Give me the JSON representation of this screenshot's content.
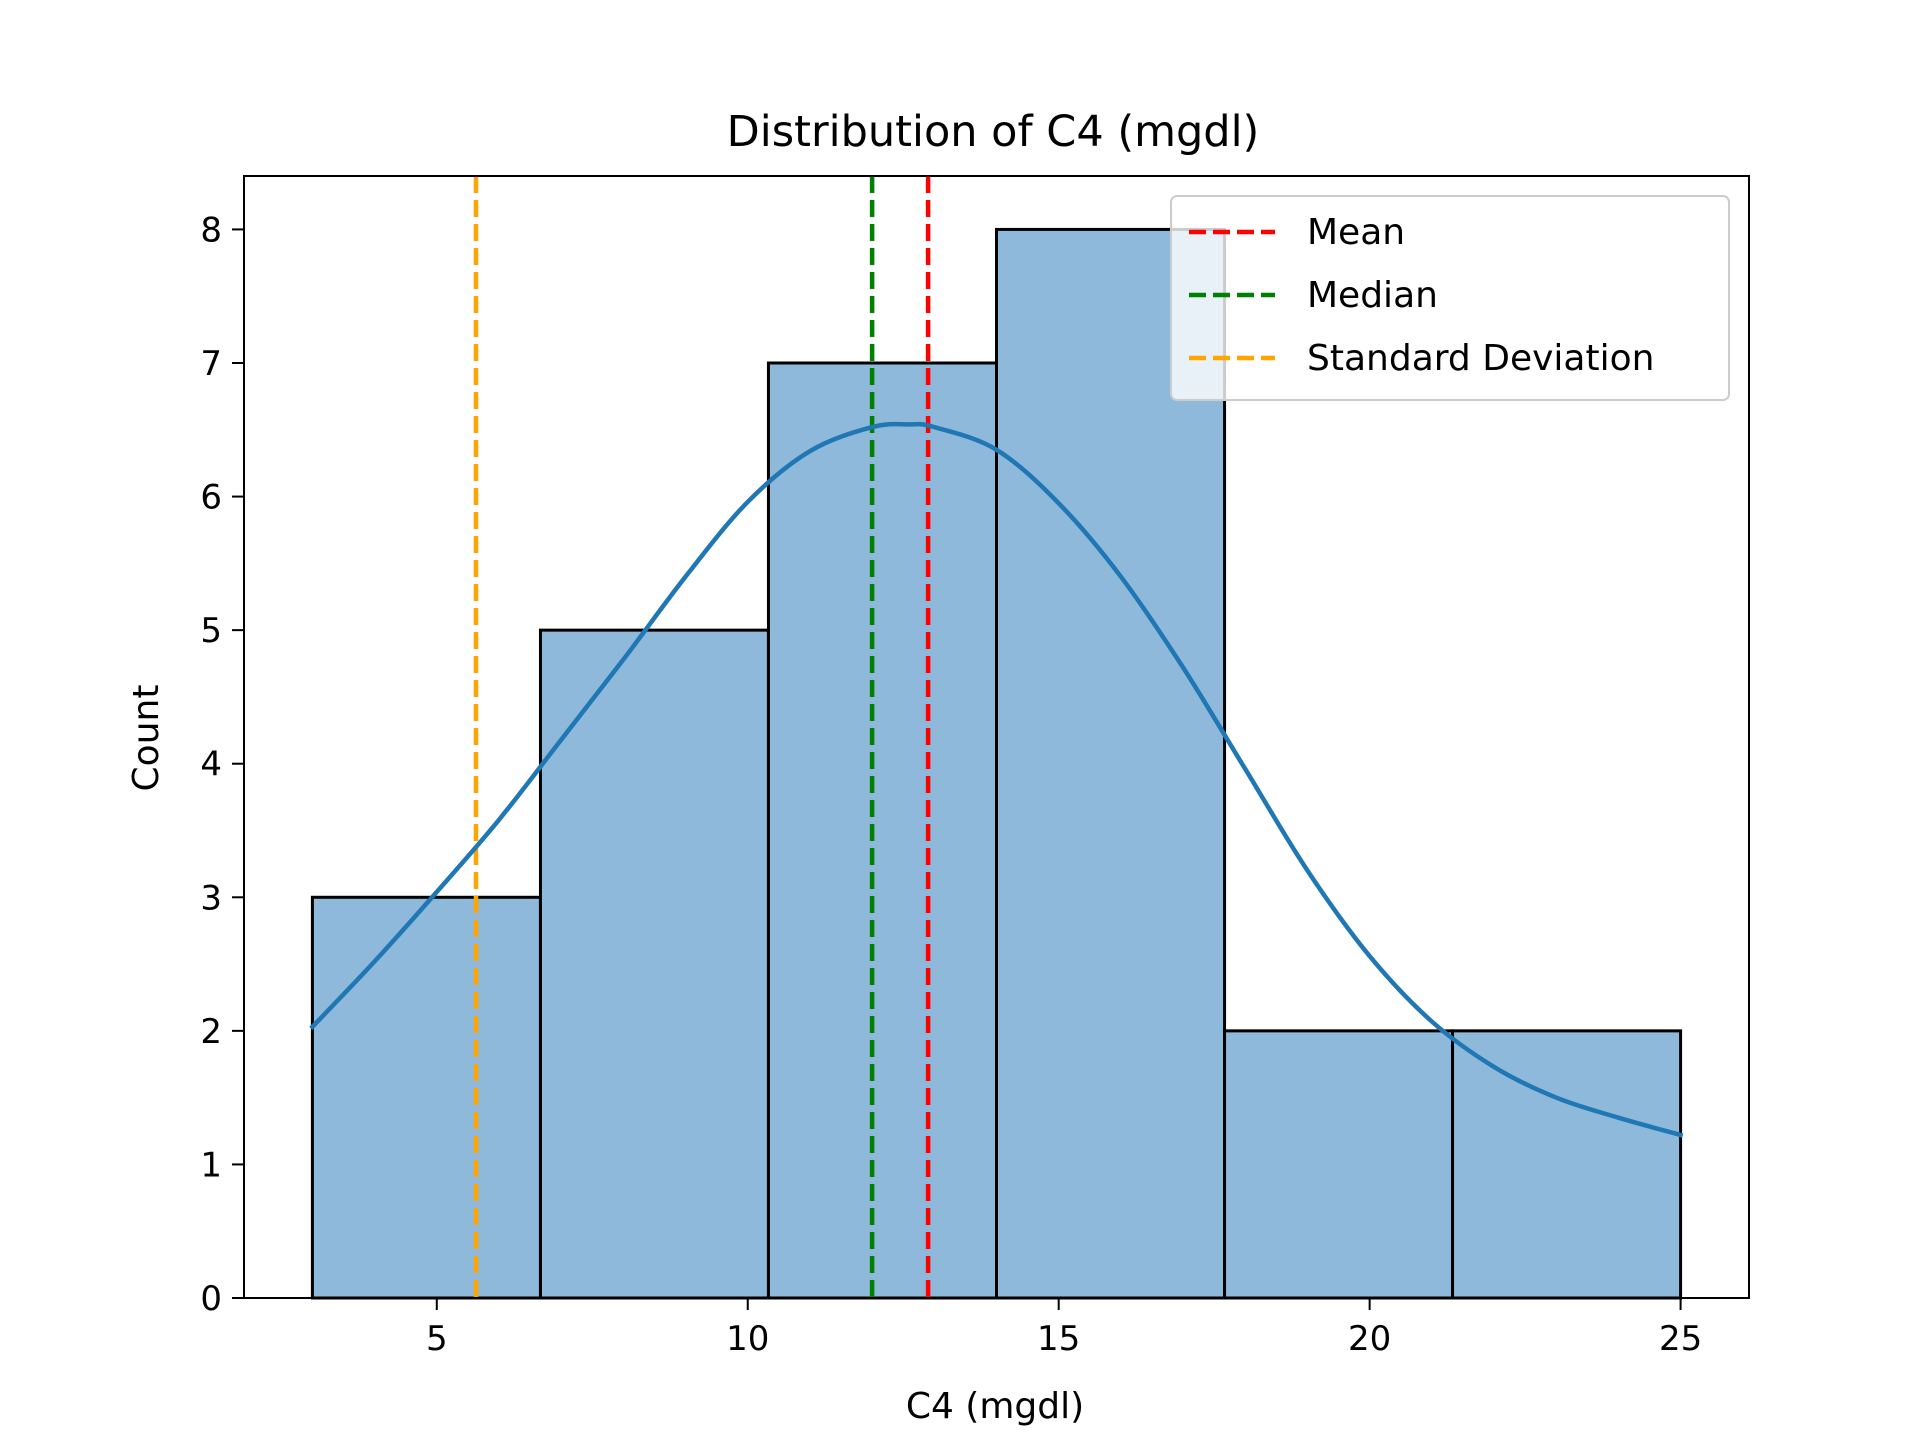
{
  "chart_data": {
    "type": "bar",
    "title": "Distribution of C4 (mgdl)",
    "xlabel": "C4 (mgdl)",
    "ylabel": "Count",
    "xlim": [
      1.9,
      26.1
    ],
    "ylim": [
      0,
      8.4
    ],
    "xticks": [
      5,
      10,
      15,
      20,
      25
    ],
    "yticks": [
      0,
      1,
      2,
      3,
      4,
      5,
      6,
      7,
      8
    ],
    "bins": [
      {
        "x0": 3.0,
        "x1": 6.667,
        "count": 3
      },
      {
        "x0": 6.667,
        "x1": 10.333,
        "count": 5
      },
      {
        "x0": 10.333,
        "x1": 14.0,
        "count": 7
      },
      {
        "x0": 14.0,
        "x1": 17.667,
        "count": 8
      },
      {
        "x0": 17.667,
        "x1": 21.333,
        "count": 2
      },
      {
        "x0": 21.333,
        "x1": 25.0,
        "count": 2
      }
    ],
    "kde": {
      "x": [
        3,
        4,
        5,
        6,
        7,
        8,
        9,
        10,
        11,
        12,
        12.6,
        13,
        14,
        15,
        16,
        17,
        18,
        19,
        20,
        21,
        22,
        23,
        24,
        25
      ],
      "y": [
        2.03,
        2.52,
        3.04,
        3.58,
        4.18,
        4.78,
        5.4,
        5.96,
        6.34,
        6.52,
        6.54,
        6.52,
        6.35,
        5.95,
        5.4,
        4.72,
        3.96,
        3.2,
        2.56,
        2.07,
        1.73,
        1.5,
        1.35,
        1.22
      ]
    },
    "reference_lines": [
      {
        "name": "Mean",
        "x": 12.9,
        "color": "#ff0000"
      },
      {
        "name": "Median",
        "x": 12.0,
        "color": "#008000"
      },
      {
        "name": "Standard Deviation",
        "x": 5.63,
        "color": "#ffa500"
      }
    ],
    "legend": {
      "placement": "top-right",
      "entries": [
        "Mean",
        "Median",
        "Standard Deviation"
      ]
    },
    "colors": {
      "bar_fill": "#8fb9db",
      "bar_edge": "#000000",
      "kde_line": "#1f77b4"
    },
    "grid": false
  }
}
